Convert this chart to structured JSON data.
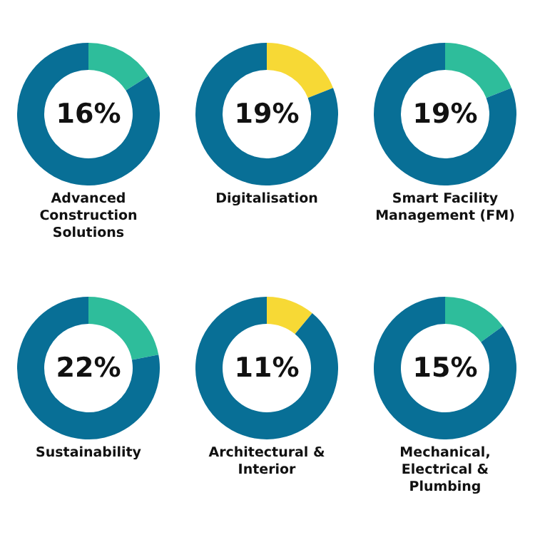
{
  "chart_data": [
    {
      "type": "donut",
      "title": "Advanced Construction Solutions",
      "categories": [
        null,
        null
      ],
      "values": [
        16,
        84
      ],
      "colors": [
        "#2ebd9b",
        "#086f96"
      ],
      "annotations": [
        "16%"
      ]
    },
    {
      "type": "donut",
      "title": "Digitalisation",
      "categories": [
        null,
        null
      ],
      "values": [
        19,
        81
      ],
      "colors": [
        "#f7d935",
        "#086f96"
      ],
      "annotations": [
        "19%"
      ]
    },
    {
      "type": "donut",
      "title": "Smart Facility Management (FM)",
      "categories": [
        null,
        null
      ],
      "values": [
        19,
        81
      ],
      "colors": [
        "#2ebd9b",
        "#086f96"
      ],
      "annotations": [
        "19%"
      ]
    },
    {
      "type": "donut",
      "title": "Sustainability",
      "categories": [
        null,
        null
      ],
      "values": [
        22,
        78
      ],
      "colors": [
        "#2ebd9b",
        "#086f96"
      ],
      "annotations": [
        "22%"
      ]
    },
    {
      "type": "donut",
      "title": "Architectural & Interior",
      "categories": [
        null,
        null
      ],
      "values": [
        11,
        89
      ],
      "colors": [
        "#f7d935",
        "#086f96"
      ],
      "annotations": [
        "11%"
      ]
    },
    {
      "type": "donut",
      "title": "Mechanical, Electrical & Plumbing",
      "categories": [
        null,
        null
      ],
      "values": [
        15,
        85
      ],
      "colors": [
        "#2ebd9b",
        "#086f96"
      ],
      "annotations": [
        "15%"
      ]
    }
  ]
}
